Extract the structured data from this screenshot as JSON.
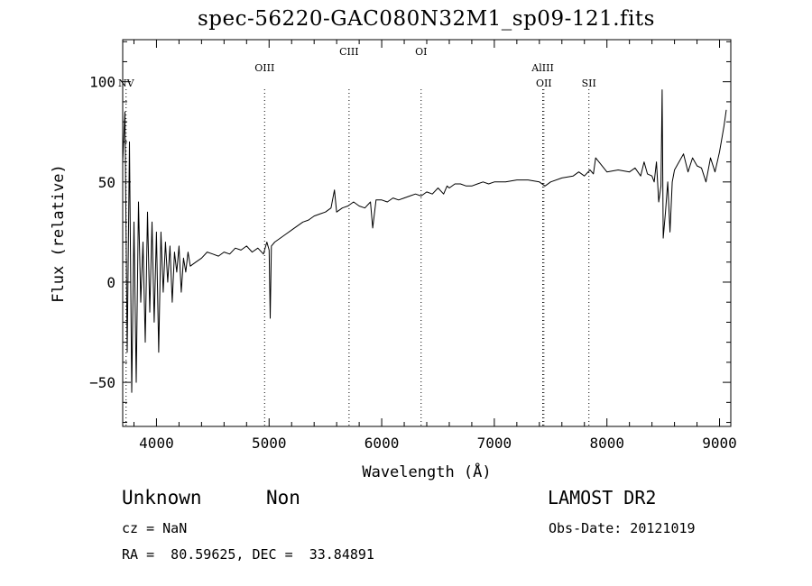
{
  "title": "spec-56220-GAC080N32M1_sp09-121.fits",
  "info": {
    "class": "Unknown",
    "subclass": "Non",
    "survey": "LAMOST DR2",
    "cz": "cz = NaN",
    "obs_date": "Obs-Date: 20121019",
    "radec": "RA =  80.59625, DEC =  33.84891"
  },
  "chart_data": {
    "type": "line",
    "title": "spec-56220-GAC080N32M1_sp09-121.fits",
    "xlabel": "Wavelength (Å)",
    "ylabel": "Flux (relative)",
    "xlim": [
      3700,
      9100
    ],
    "ylim": [
      -72,
      121
    ],
    "xticks": [
      4000,
      5000,
      6000,
      7000,
      8000,
      9000
    ],
    "xtick_labels": [
      "4000",
      "5000",
      "6000",
      "7000",
      "8000",
      "9000"
    ],
    "yticks": [
      -50,
      0,
      50,
      100
    ],
    "ytick_labels": [
      "−50",
      "0",
      "50",
      "100"
    ],
    "grid": false,
    "color": "#000000",
    "line_color": "#000000",
    "x": [
      3700,
      3720,
      3740,
      3760,
      3780,
      3800,
      3820,
      3840,
      3860,
      3880,
      3900,
      3920,
      3940,
      3960,
      3980,
      4000,
      4020,
      4040,
      4060,
      4080,
      4100,
      4120,
      4140,
      4160,
      4180,
      4200,
      4220,
      4240,
      4260,
      4280,
      4300,
      4350,
      4400,
      4450,
      4500,
      4550,
      4600,
      4650,
      4700,
      4750,
      4800,
      4850,
      4900,
      4950,
      4980,
      5000,
      5010,
      5020,
      5050,
      5100,
      5150,
      5200,
      5250,
      5300,
      5350,
      5400,
      5450,
      5500,
      5550,
      5580,
      5600,
      5650,
      5700,
      5750,
      5800,
      5850,
      5900,
      5920,
      5950,
      6000,
      6050,
      6100,
      6150,
      6200,
      6250,
      6300,
      6350,
      6400,
      6450,
      6500,
      6550,
      6580,
      6600,
      6650,
      6700,
      6750,
      6800,
      6850,
      6900,
      6950,
      7000,
      7100,
      7200,
      7300,
      7400,
      7450,
      7500,
      7600,
      7700,
      7750,
      7800,
      7850,
      7880,
      7900,
      8000,
      8100,
      8200,
      8250,
      8300,
      8330,
      8360,
      8400,
      8420,
      8440,
      8460,
      8480,
      8490,
      8500,
      8520,
      8540,
      8560,
      8580,
      8600,
      8640,
      8680,
      8720,
      8760,
      8800,
      8840,
      8880,
      8920,
      8960,
      9000,
      9040,
      9060
    ],
    "y": [
      60,
      85,
      -35,
      70,
      -55,
      30,
      -50,
      40,
      -10,
      20,
      -30,
      35,
      -15,
      30,
      -20,
      25,
      -35,
      25,
      -5,
      20,
      0,
      18,
      -10,
      15,
      5,
      18,
      -5,
      12,
      5,
      15,
      8,
      10,
      12,
      15,
      14,
      13,
      15,
      14,
      17,
      16,
      18,
      15,
      17,
      14,
      20,
      16,
      -18,
      18,
      20,
      22,
      24,
      26,
      28,
      30,
      31,
      33,
      34,
      35,
      37,
      46,
      35,
      37,
      38,
      40,
      38,
      37,
      40,
      27,
      41,
      41,
      40,
      42,
      41,
      42,
      43,
      44,
      43,
      45,
      44,
      47,
      44,
      48,
      47,
      49,
      49,
      48,
      48,
      49,
      50,
      49,
      50,
      50,
      51,
      51,
      50,
      48,
      50,
      52,
      53,
      55,
      53,
      56,
      54,
      62,
      55,
      56,
      55,
      57,
      53,
      60,
      54,
      53,
      50,
      60,
      40,
      48,
      96,
      22,
      35,
      50,
      25,
      50,
      56,
      60,
      64,
      55,
      62,
      58,
      57,
      50,
      62,
      55,
      65,
      78,
      86
    ],
    "lines": [
      {
        "label": "NV",
        "x": 3730,
        "row": 3
      },
      {
        "label": "OIII",
        "x": 4960,
        "row": 2
      },
      {
        "label": "CIII",
        "x": 5710,
        "row": 1
      },
      {
        "label": "OI",
        "x": 6350,
        "row": 1
      },
      {
        "label": "AlIII",
        "x": 7430,
        "row": 2
      },
      {
        "label": "OII",
        "x": 7440,
        "row": 3
      },
      {
        "label": "SII",
        "x": 7840,
        "row": 3
      }
    ]
  }
}
